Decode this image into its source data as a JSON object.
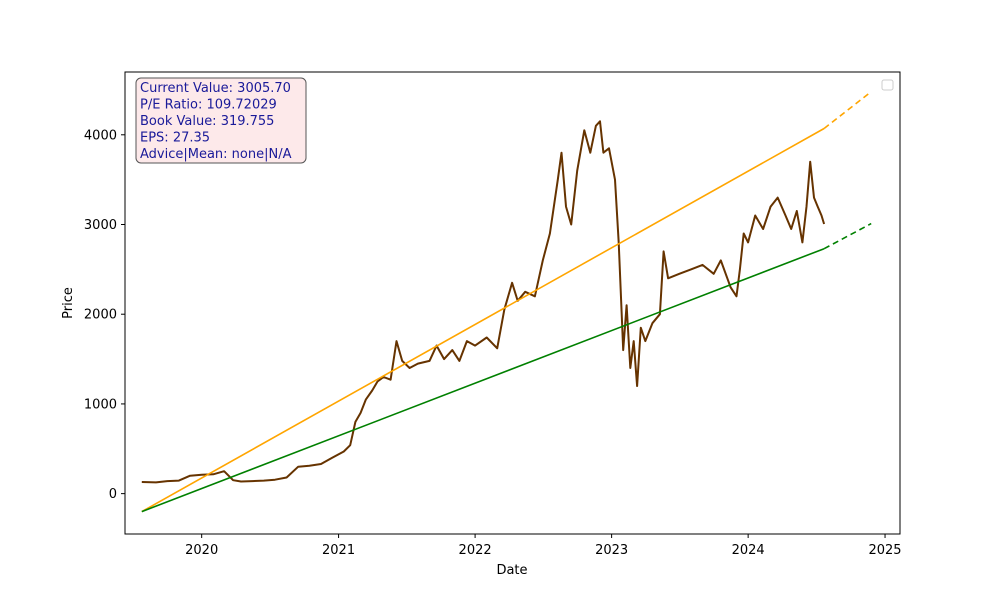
{
  "chart_data": {
    "type": "line",
    "xlabel": "Date",
    "ylabel": "Price",
    "x_ticks": [
      "2020",
      "2021",
      "2022",
      "2023",
      "2024",
      "2025"
    ],
    "y_ticks": [
      "0",
      "1000",
      "2000",
      "3000",
      "4000"
    ],
    "xlim": [
      "2019-06-10",
      "2025-02-10"
    ],
    "ylim": [
      -450,
      4700
    ],
    "grid": false,
    "legend": "top-right (empty)",
    "info_box": {
      "lines": [
        "Current Value: 3005.70",
        "P/E Ratio: 109.72029",
        "Book Value: 319.755",
        "EPS: 27.35",
        "Advice|Mean: none|N/A"
      ],
      "text_color": "#1a1a99",
      "background": "#fde9ea",
      "border": "#555555"
    },
    "series": [
      {
        "color": "#663300",
        "style": "solid",
        "points": [
          [
            "2019-07-25",
            130
          ],
          [
            "2019-09-01",
            125
          ],
          [
            "2019-10-01",
            140
          ],
          [
            "2019-11-01",
            145
          ],
          [
            "2019-12-01",
            200
          ],
          [
            "2020-01-01",
            210
          ],
          [
            "2020-02-01",
            215
          ],
          [
            "2020-03-01",
            250
          ],
          [
            "2020-03-25",
            150
          ],
          [
            "2020-04-15",
            135
          ],
          [
            "2020-05-15",
            140
          ],
          [
            "2020-06-15",
            145
          ],
          [
            "2020-07-15",
            155
          ],
          [
            "2020-08-15",
            180
          ],
          [
            "2020-09-15",
            300
          ],
          [
            "2020-10-15",
            310
          ],
          [
            "2020-11-15",
            330
          ],
          [
            "2020-12-15",
            400
          ],
          [
            "2021-01-15",
            470
          ],
          [
            "2021-02-01",
            540
          ],
          [
            "2021-02-15",
            800
          ],
          [
            "2021-03-01",
            900
          ],
          [
            "2021-03-15",
            1050
          ],
          [
            "2021-04-01",
            1150
          ],
          [
            "2021-04-15",
            1250
          ],
          [
            "2021-05-01",
            1300
          ],
          [
            "2021-05-20",
            1270
          ],
          [
            "2021-06-05",
            1700
          ],
          [
            "2021-06-20",
            1480
          ],
          [
            "2021-07-10",
            1400
          ],
          [
            "2021-08-01",
            1450
          ],
          [
            "2021-09-01",
            1480
          ],
          [
            "2021-09-20",
            1650
          ],
          [
            "2021-10-10",
            1500
          ],
          [
            "2021-11-01",
            1600
          ],
          [
            "2021-11-20",
            1480
          ],
          [
            "2021-12-10",
            1700
          ],
          [
            "2022-01-01",
            1650
          ],
          [
            "2022-02-01",
            1740
          ],
          [
            "2022-03-01",
            1620
          ],
          [
            "2022-03-20",
            2050
          ],
          [
            "2022-04-10",
            2350
          ],
          [
            "2022-04-25",
            2150
          ],
          [
            "2022-05-15",
            2250
          ],
          [
            "2022-06-10",
            2200
          ],
          [
            "2022-07-01",
            2600
          ],
          [
            "2022-07-20",
            2900
          ],
          [
            "2022-08-10",
            3500
          ],
          [
            "2022-08-20",
            3800
          ],
          [
            "2022-09-01",
            3200
          ],
          [
            "2022-09-15",
            3000
          ],
          [
            "2022-10-01",
            3600
          ],
          [
            "2022-10-20",
            4050
          ],
          [
            "2022-11-05",
            3800
          ],
          [
            "2022-11-20",
            4100
          ],
          [
            "2022-12-01",
            4150
          ],
          [
            "2022-12-10",
            3800
          ],
          [
            "2022-12-25",
            3850
          ],
          [
            "2023-01-10",
            3500
          ],
          [
            "2023-01-20",
            2800
          ],
          [
            "2023-02-01",
            1600
          ],
          [
            "2023-02-10",
            2100
          ],
          [
            "2023-02-20",
            1400
          ],
          [
            "2023-03-01",
            1700
          ],
          [
            "2023-03-10",
            1200
          ],
          [
            "2023-03-20",
            1850
          ],
          [
            "2023-04-01",
            1700
          ],
          [
            "2023-04-20",
            1900
          ],
          [
            "2023-05-10",
            2000
          ],
          [
            "2023-05-20",
            2700
          ],
          [
            "2023-06-01",
            2400
          ],
          [
            "2023-07-01",
            2450
          ],
          [
            "2023-08-01",
            2500
          ],
          [
            "2023-09-01",
            2550
          ],
          [
            "2023-10-01",
            2450
          ],
          [
            "2023-10-20",
            2600
          ],
          [
            "2023-11-15",
            2300
          ],
          [
            "2023-12-01",
            2200
          ],
          [
            "2023-12-10",
            2500
          ],
          [
            "2023-12-20",
            2900
          ],
          [
            "2024-01-01",
            2800
          ],
          [
            "2024-01-20",
            3100
          ],
          [
            "2024-02-10",
            2950
          ],
          [
            "2024-03-01",
            3200
          ],
          [
            "2024-03-20",
            3300
          ],
          [
            "2024-04-10",
            3100
          ],
          [
            "2024-04-25",
            2950
          ],
          [
            "2024-05-10",
            3150
          ],
          [
            "2024-05-25",
            2800
          ],
          [
            "2024-06-05",
            3200
          ],
          [
            "2024-06-15",
            3700
          ],
          [
            "2024-06-25",
            3300
          ],
          [
            "2024-07-05",
            3200
          ],
          [
            "2024-07-15",
            3100
          ],
          [
            "2024-07-22",
            3005.7
          ]
        ]
      },
      {
        "color": "#ffa500",
        "style": "solid",
        "points": [
          [
            "2019-07-25",
            -200
          ],
          [
            "2024-07-22",
            4070
          ]
        ]
      },
      {
        "color": "#ffa500",
        "style": "dashed",
        "points": [
          [
            "2024-07-22",
            4070
          ],
          [
            "2024-11-25",
            4480
          ]
        ]
      },
      {
        "color": "#008000",
        "style": "solid",
        "points": [
          [
            "2019-07-25",
            -200
          ],
          [
            "2024-07-22",
            2730
          ]
        ]
      },
      {
        "color": "#008000",
        "style": "dashed",
        "points": [
          [
            "2024-07-22",
            2730
          ],
          [
            "2024-11-25",
            3010
          ]
        ]
      }
    ]
  }
}
